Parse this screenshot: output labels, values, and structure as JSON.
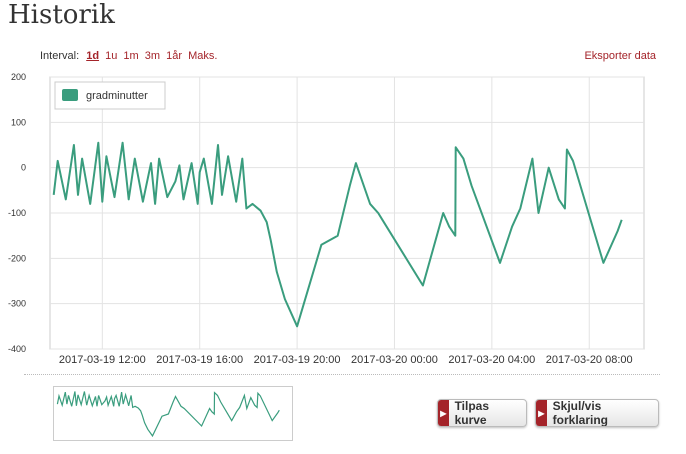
{
  "page": {
    "title": "Historik"
  },
  "interval": {
    "label": "Interval:",
    "options": [
      "1d",
      "1u",
      "1m",
      "3m",
      "1år",
      "Maks."
    ],
    "selected": "1d"
  },
  "export_label": "Eksporter data",
  "buttons": {
    "fit": "Tilpas kurve",
    "legend": "Skjul/vis forklaring"
  },
  "colors": {
    "series": "#3a9d7e",
    "accent": "#a4242a"
  },
  "chart_data": {
    "type": "line",
    "series": [
      {
        "name": "gradminutter",
        "x": [
          "2017-03-19 10:00",
          "2017-03-19 10:10",
          "2017-03-19 10:30",
          "2017-03-19 10:50",
          "2017-03-19 11:00",
          "2017-03-19 11:10",
          "2017-03-19 11:30",
          "2017-03-19 11:50",
          "2017-03-19 12:00",
          "2017-03-19 12:10",
          "2017-03-19 12:30",
          "2017-03-19 12:50",
          "2017-03-19 13:05",
          "2017-03-19 13:20",
          "2017-03-19 13:40",
          "2017-03-19 14:00",
          "2017-03-19 14:10",
          "2017-03-19 14:20",
          "2017-03-19 14:40",
          "2017-03-19 15:00",
          "2017-03-19 15:10",
          "2017-03-19 15:20",
          "2017-03-19 15:40",
          "2017-03-19 15:55",
          "2017-03-19 16:00",
          "2017-03-19 16:10",
          "2017-03-19 16:30",
          "2017-03-19 16:45",
          "2017-03-19 16:55",
          "2017-03-19 17:10",
          "2017-03-19 17:30",
          "2017-03-19 17:45",
          "2017-03-19 17:55",
          "2017-03-19 18:10",
          "2017-03-19 18:30",
          "2017-03-19 18:45",
          "2017-03-19 18:55",
          "2017-03-19 19:10",
          "2017-03-19 19:30",
          "2017-03-19 20:00",
          "2017-03-19 21:00",
          "2017-03-19 21:40",
          "2017-03-19 22:10",
          "2017-03-19 22:25",
          "2017-03-19 23:00",
          "2017-03-19 23:20",
          "2017-03-20 01:10",
          "2017-03-20 02:00",
          "2017-03-20 02:15",
          "2017-03-20 02:30",
          "2017-03-20 02:31",
          "2017-03-20 02:50",
          "2017-03-20 03:10",
          "2017-03-20 04:20",
          "2017-03-20 04:50",
          "2017-03-20 05:10",
          "2017-03-20 05:40",
          "2017-03-20 05:55",
          "2017-03-20 06:20",
          "2017-03-20 06:45",
          "2017-03-20 07:00",
          "2017-03-20 07:05",
          "2017-03-20 07:20",
          "2017-03-20 08:35",
          "2017-03-20 09:10",
          "2017-03-20 09:20"
        ],
        "y": [
          -60,
          15,
          -70,
          50,
          -60,
          20,
          -80,
          55,
          -75,
          25,
          -65,
          55,
          -70,
          20,
          -75,
          10,
          -80,
          20,
          -65,
          -30,
          5,
          -70,
          10,
          -80,
          -10,
          20,
          -80,
          50,
          -60,
          25,
          -75,
          20,
          -90,
          -80,
          -95,
          -120,
          -160,
          -230,
          -290,
          -350,
          -170,
          -150,
          -40,
          10,
          -80,
          -100,
          -260,
          -100,
          -130,
          -150,
          45,
          20,
          -40,
          -210,
          -130,
          -90,
          20,
          -100,
          0,
          -70,
          -90,
          40,
          15,
          -210,
          -140,
          -115
        ]
      }
    ],
    "x_tick_labels": [
      "2017-03-19 12:00",
      "2017-03-19 16:00",
      "2017-03-19 20:00",
      "2017-03-20 00:00",
      "2017-03-20 04:00",
      "2017-03-20 08:00"
    ],
    "y_ticks": [
      200,
      100,
      0,
      -100,
      -200,
      -300,
      -400
    ],
    "ylim": [
      -400,
      200
    ],
    "grid": true,
    "legend": "top-left",
    "title": "",
    "xlabel": "",
    "ylabel": ""
  }
}
